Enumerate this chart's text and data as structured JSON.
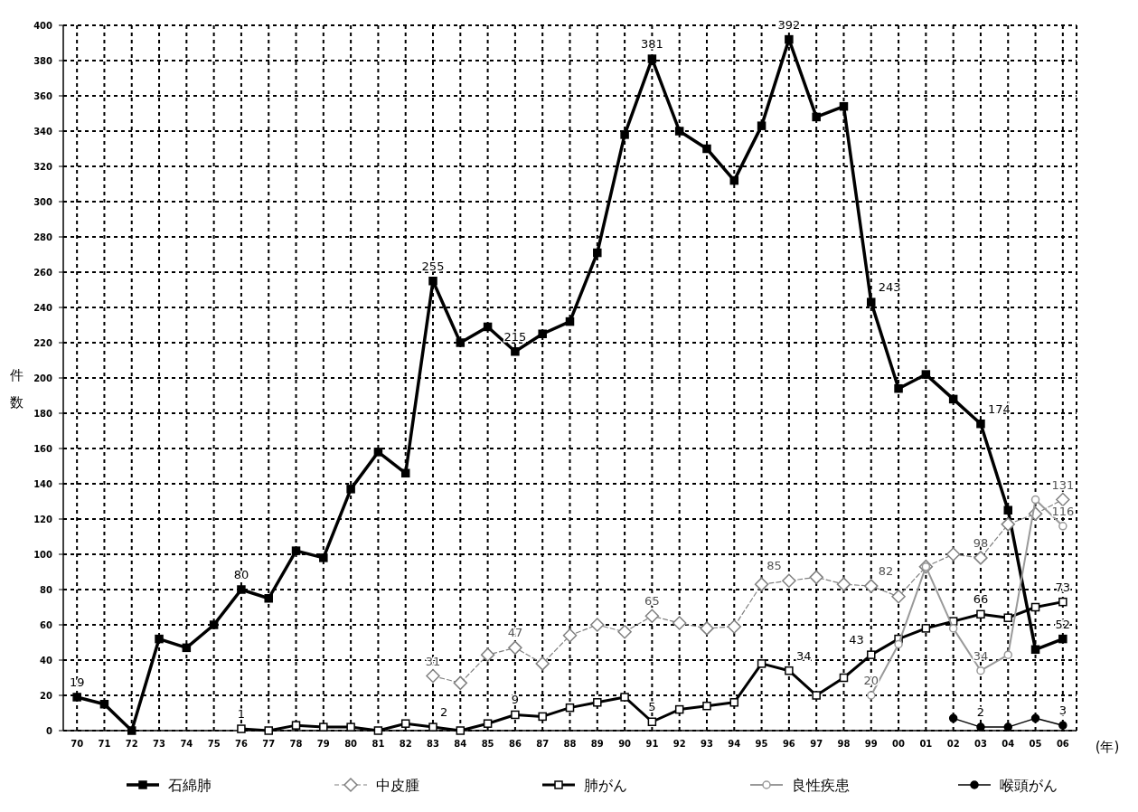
{
  "chart_data": {
    "type": "line",
    "xlabel": "(年)",
    "ylabel": "件数",
    "categories": [
      "70",
      "71",
      "72",
      "73",
      "74",
      "75",
      "76",
      "77",
      "78",
      "79",
      "80",
      "81",
      "82",
      "83",
      "84",
      "85",
      "86",
      "87",
      "88",
      "89",
      "90",
      "91",
      "92",
      "93",
      "94",
      "95",
      "96",
      "97",
      "98",
      "99",
      "00",
      "01",
      "02",
      "03",
      "04",
      "05",
      "06"
    ],
    "ylim": [
      0,
      400
    ],
    "yticks": [
      0,
      20,
      40,
      60,
      80,
      100,
      120,
      140,
      160,
      180,
      200,
      220,
      240,
      260,
      280,
      300,
      320,
      340,
      360,
      380,
      400
    ],
    "grid": true,
    "legend": "bottom",
    "series": [
      {
        "name": "石綿肺",
        "color": "#000000",
        "marker": "square",
        "line_style": "solid",
        "values": [
          19,
          15,
          0,
          52,
          47,
          60,
          80,
          75,
          102,
          98,
          137,
          158,
          146,
          255,
          220,
          229,
          215,
          225,
          232,
          271,
          338,
          381,
          340,
          330,
          312,
          343,
          392,
          348,
          354,
          243,
          194,
          202,
          188,
          174,
          125,
          46,
          52
        ],
        "value_labels": [
          "19",
          null,
          null,
          null,
          null,
          null,
          "80",
          null,
          null,
          null,
          null,
          null,
          null,
          "255",
          null,
          null,
          "215",
          null,
          null,
          null,
          null,
          "381",
          null,
          null,
          null,
          null,
          "392",
          null,
          null,
          "243",
          null,
          null,
          null,
          "174",
          null,
          null,
          "52"
        ]
      },
      {
        "name": "中皮腫",
        "color": "#808080",
        "marker": "diamond",
        "line_style": "dashed",
        "values": [
          null,
          null,
          null,
          null,
          null,
          null,
          null,
          null,
          null,
          null,
          null,
          null,
          null,
          31,
          27,
          43,
          47,
          38,
          54,
          60,
          56,
          65,
          61,
          58,
          59,
          83,
          85,
          87,
          83,
          82,
          76,
          93,
          100,
          98,
          117,
          123,
          131
        ],
        "value_labels": [
          null,
          null,
          null,
          null,
          null,
          null,
          null,
          null,
          null,
          null,
          null,
          null,
          null,
          "31",
          null,
          null,
          "47",
          null,
          null,
          null,
          null,
          "65",
          null,
          null,
          null,
          null,
          "85",
          null,
          null,
          "82",
          null,
          null,
          null,
          "98",
          null,
          null,
          "131"
        ]
      },
      {
        "name": "肺がん",
        "color": "#000000",
        "marker": "square",
        "line_style": "solid",
        "values": [
          null,
          null,
          null,
          null,
          null,
          null,
          1,
          0,
          3,
          2,
          2,
          0,
          4,
          2,
          0,
          4,
          9,
          8,
          13,
          16,
          19,
          5,
          12,
          14,
          16,
          38,
          34,
          20,
          30,
          43,
          52,
          58,
          62,
          66,
          64,
          70,
          73
        ],
        "value_labels": [
          null,
          null,
          null,
          null,
          null,
          null,
          "1",
          null,
          null,
          null,
          null,
          null,
          null,
          "2",
          null,
          null,
          "9",
          null,
          null,
          null,
          null,
          "5",
          null,
          null,
          null,
          null,
          "34",
          null,
          null,
          "43",
          null,
          null,
          null,
          "66",
          null,
          null,
          "73"
        ]
      },
      {
        "name": "良性疾患",
        "color": "#999999",
        "marker": "circle",
        "line_style": "solid",
        "values": [
          null,
          null,
          null,
          null,
          null,
          null,
          null,
          null,
          null,
          null,
          null,
          null,
          null,
          null,
          null,
          null,
          null,
          null,
          null,
          null,
          null,
          null,
          null,
          null,
          null,
          null,
          null,
          null,
          null,
          20,
          49,
          93,
          58,
          34,
          43,
          131,
          116
        ],
        "value_labels": [
          null,
          null,
          null,
          null,
          null,
          null,
          null,
          null,
          null,
          null,
          null,
          null,
          null,
          null,
          null,
          null,
          null,
          null,
          null,
          null,
          null,
          null,
          null,
          null,
          null,
          null,
          null,
          null,
          null,
          "20",
          null,
          null,
          null,
          "34",
          null,
          null,
          "116"
        ]
      },
      {
        "name": "喉頭がん",
        "color": "#000000",
        "marker": "circle",
        "line_style": "solid",
        "values": [
          null,
          null,
          null,
          null,
          null,
          null,
          null,
          null,
          null,
          null,
          null,
          null,
          null,
          null,
          null,
          null,
          null,
          null,
          null,
          null,
          null,
          null,
          null,
          null,
          null,
          null,
          null,
          null,
          null,
          null,
          null,
          null,
          7,
          2,
          2,
          7,
          3
        ],
        "value_labels": [
          null,
          null,
          null,
          null,
          null,
          null,
          null,
          null,
          null,
          null,
          null,
          null,
          null,
          null,
          null,
          null,
          null,
          null,
          null,
          null,
          null,
          null,
          null,
          null,
          null,
          null,
          null,
          null,
          null,
          null,
          null,
          null,
          null,
          "2",
          null,
          null,
          "3"
        ]
      }
    ]
  }
}
